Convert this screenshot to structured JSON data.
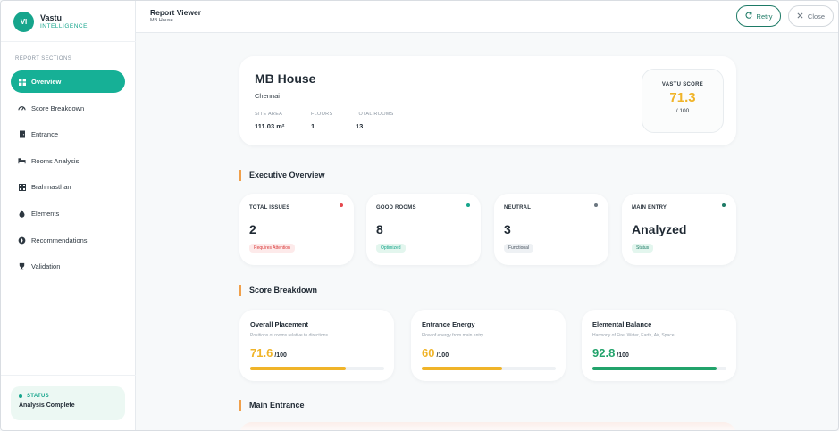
{
  "app": {
    "brand_initials": "VI",
    "brand_name": "Vastu",
    "brand_sub": "INTELLIGENCE"
  },
  "sidebar": {
    "section_label": "REPORT SECTIONS",
    "items": [
      {
        "label": "Overview",
        "icon": "grid-icon",
        "active": true
      },
      {
        "label": "Score Breakdown",
        "icon": "gauge-icon",
        "active": false
      },
      {
        "label": "Entrance",
        "icon": "door-icon",
        "active": false
      },
      {
        "label": "Rooms Analysis",
        "icon": "bed-icon",
        "active": false
      },
      {
        "label": "Brahmasthan",
        "icon": "center-grid-icon",
        "active": false
      },
      {
        "label": "Elements",
        "icon": "drop-icon",
        "active": false
      },
      {
        "label": "Recommendations",
        "icon": "compass-icon",
        "active": false
      },
      {
        "label": "Validation",
        "icon": "trophy-icon",
        "active": false
      }
    ],
    "status": {
      "label": "STATUS",
      "value": "Analysis Complete"
    }
  },
  "header": {
    "title": "Report Viewer",
    "subtitle": "MB House",
    "retry_label": "Retry",
    "close_label": "Close"
  },
  "property": {
    "name": "MB House",
    "city": "Chennai",
    "stats": [
      {
        "label": "SITE AREA",
        "value": "111.03 m²"
      },
      {
        "label": "FLOORS",
        "value": "1"
      },
      {
        "label": "TOTAL ROOMS",
        "value": "13"
      }
    ],
    "score": {
      "label": "VASTU SCORE",
      "value": "71.3",
      "out_of": "/ 100"
    }
  },
  "sections": {
    "executive": "Executive Overview",
    "score": "Score Breakdown",
    "entrance": "Main Entrance"
  },
  "overview_cards": [
    {
      "label": "TOTAL ISSUES",
      "value": "2",
      "badge": "Requires Attention",
      "dot_color": "#e5484d",
      "badge_bg": "#fdeaea",
      "badge_fg": "#d93a3a"
    },
    {
      "label": "GOOD ROOMS",
      "value": "8",
      "badge": "Optimized",
      "dot_color": "#16a58c",
      "badge_bg": "#e3f6ee",
      "badge_fg": "#16a58c"
    },
    {
      "label": "NEUTRAL",
      "value": "3",
      "badge": "Functional",
      "dot_color": "#6b7680",
      "badge_bg": "#eef1f4",
      "badge_fg": "#4a5560"
    },
    {
      "label": "MAIN ENTRY",
      "value": "Analyzed",
      "badge": "Status",
      "dot_color": "#1d7a66",
      "badge_bg": "#e3f6ee",
      "badge_fg": "#1d7a66"
    }
  ],
  "score_cards": [
    {
      "title": "Overall Placement",
      "desc": "Positions of rooms relative to directions",
      "value": "71.6",
      "out_of": "/100",
      "fraction": 0.716,
      "color": "#f0b429"
    },
    {
      "title": "Entrance Energy",
      "desc": "Flow of energy from main entry",
      "value": "60",
      "out_of": "/100",
      "fraction": 0.6,
      "color": "#f0b429"
    },
    {
      "title": "Elemental Balance",
      "desc": "Harmony of Fire, Water, Earth, Air, Space",
      "value": "92.8",
      "out_of": "/100",
      "fraction": 0.928,
      "color": "#22a36b"
    }
  ]
}
